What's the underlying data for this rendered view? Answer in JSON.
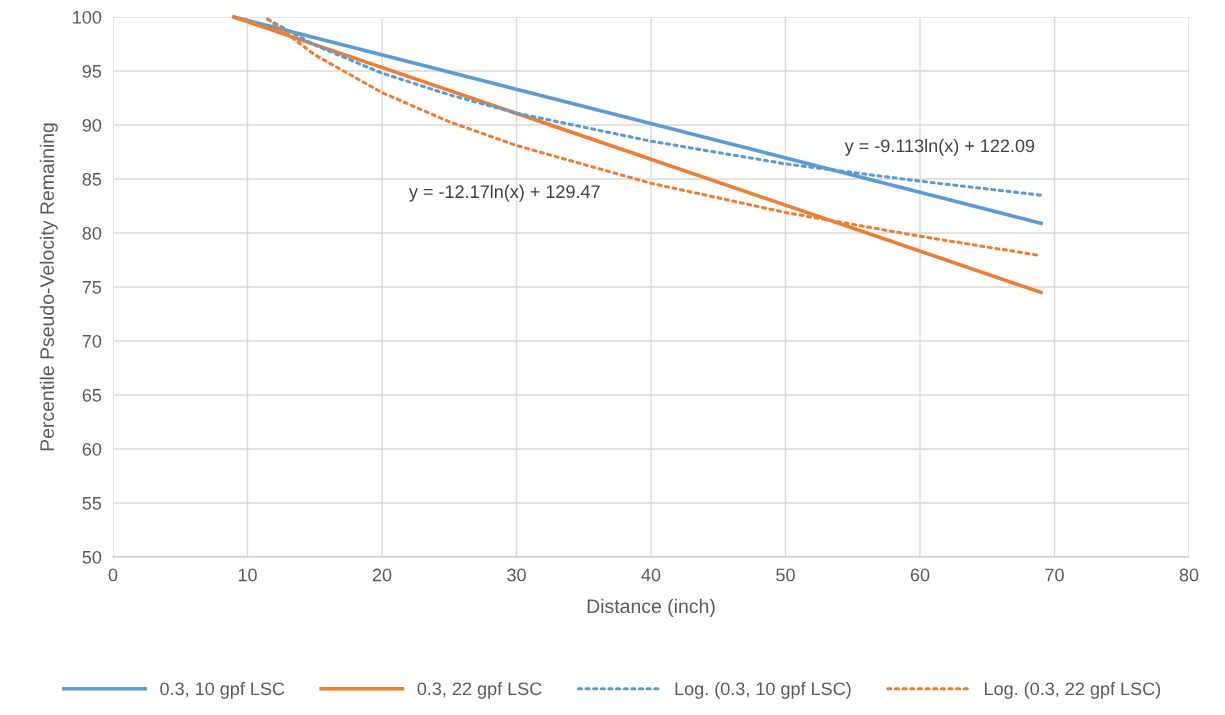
{
  "chart_data": {
    "type": "line",
    "xlabel": "Distance (inch)",
    "ylabel": "Percentile Pseudo-Velocity Remaining",
    "xlim": [
      0,
      80
    ],
    "xticks": [
      0,
      10,
      20,
      30,
      40,
      50,
      60,
      70,
      80
    ],
    "ylim": [
      50,
      100
    ],
    "yticks": [
      50,
      55,
      60,
      65,
      70,
      75,
      80,
      85,
      90,
      95,
      100
    ],
    "grid": true,
    "legend": "bottom",
    "marker": "none",
    "series": [
      {
        "name": "0.3, 10 gpf LSC",
        "color": "#5b9bd5",
        "line_style": "solid",
        "x": [
          9,
          69
        ],
        "values": [
          100,
          80.9
        ]
      },
      {
        "name": "0.3, 22 gpf LSC",
        "color": "#ed7d31",
        "line_style": "solid",
        "x": [
          9,
          69
        ],
        "values": [
          100,
          74.5
        ]
      },
      {
        "name": "Log. (0.3, 10 gpf LSC)",
        "color": "#5b9bd5",
        "line_style": "dotted",
        "x": [
          11.5,
          15,
          20,
          25,
          30,
          40,
          50,
          60,
          69
        ],
        "values": [
          99.8,
          97.4,
          94.8,
          92.8,
          91.1,
          88.5,
          86.4,
          84.8,
          83.5
        ]
      },
      {
        "name": "Log. (0.3, 22 gpf LSC)",
        "color": "#ed7d31",
        "line_style": "dotted",
        "x": [
          11.5,
          15,
          20,
          25,
          30,
          40,
          50,
          60,
          69
        ],
        "values": [
          99.8,
          96.5,
          93.0,
          90.3,
          88.1,
          84.6,
          81.9,
          79.7,
          77.9
        ]
      }
    ],
    "annotations": [
      "y = -9.113ln(x) + 122.09",
      "y = -12.17ln(x) + 129.47"
    ]
  }
}
